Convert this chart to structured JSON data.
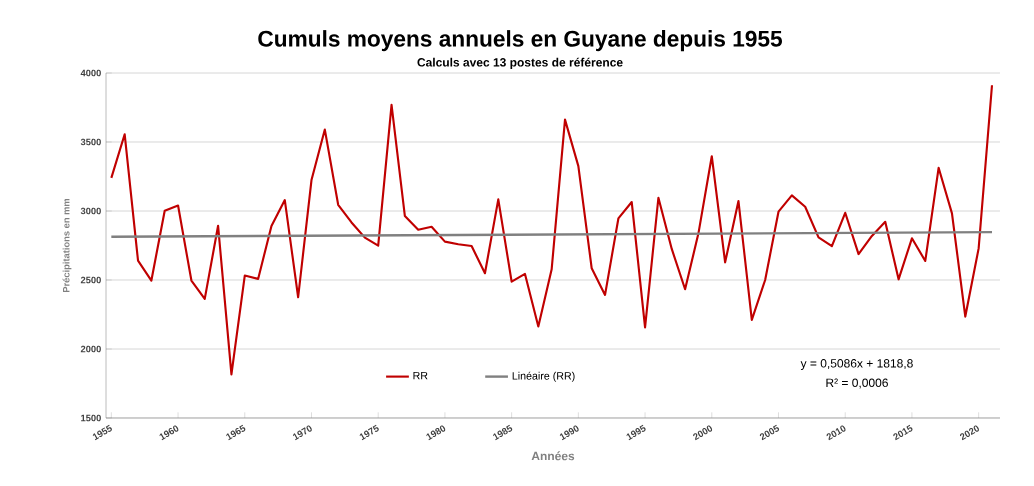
{
  "chart_data": {
    "type": "line",
    "title": "Cumuls moyens annuels en Guyane depuis 1955",
    "subtitle": "Calculs avec 13 postes de référence",
    "xlabel": "Années",
    "ylabel": "Précipitations en mm",
    "x": [
      1955,
      1956,
      1957,
      1958,
      1959,
      1960,
      1961,
      1962,
      1963,
      1964,
      1965,
      1966,
      1967,
      1968,
      1969,
      1970,
      1971,
      1972,
      1973,
      1974,
      1975,
      1976,
      1977,
      1978,
      1979,
      1980,
      1981,
      1982,
      1983,
      1984,
      1985,
      1986,
      1987,
      1988,
      1989,
      1990,
      1991,
      1992,
      1993,
      1994,
      1995,
      1996,
      1997,
      1998,
      1999,
      2000,
      2001,
      2002,
      2003,
      2004,
      2005,
      2006,
      2007,
      2008,
      2009,
      2010,
      2011,
      2012,
      2013,
      2014,
      2015,
      2016,
      2017,
      2018,
      2019,
      2020,
      2021
    ],
    "series": [
      {
        "name": "RR",
        "color": "#c00000",
        "values": [
          3240,
          3556,
          2640,
          2496,
          3002,
          3040,
          2496,
          2363,
          2893,
          1816,
          2532,
          2508,
          2891,
          3079,
          2375,
          3224,
          3590,
          3045,
          2917,
          2807,
          2749,
          3769,
          2963,
          2864,
          2886,
          2778,
          2759,
          2746,
          2549,
          3084,
          2488,
          2544,
          2163,
          2578,
          3662,
          3325,
          2585,
          2392,
          2946,
          3065,
          2156,
          3096,
          2725,
          2433,
          2838,
          3397,
          2628,
          3072,
          2211,
          2500,
          2995,
          3113,
          3031,
          2809,
          2746,
          2987,
          2688,
          2819,
          2922,
          2505,
          2802,
          2638,
          3313,
          2983,
          2235,
          2729,
          3911
        ]
      },
      {
        "name": "Linéaire (RR)",
        "color": "#808080",
        "type": "line",
        "x": [
          1955,
          2021
        ],
        "values": [
          2813,
          2847
        ]
      }
    ],
    "xlim": [
      1954.6,
      2021.6
    ],
    "ylim": [
      1500,
      4000
    ],
    "xticks": [
      1955,
      1960,
      1965,
      1970,
      1975,
      1980,
      1985,
      1990,
      1995,
      2000,
      2005,
      2010,
      2015,
      2020
    ],
    "yticks": [
      1500,
      2000,
      2500,
      3000,
      3500,
      4000
    ],
    "grid": "y",
    "legend": "bottom",
    "marker": "none",
    "line_style": "solid",
    "annotations": [
      "y = 0,5086x + 1818,8",
      "R² = 0,0006"
    ]
  }
}
